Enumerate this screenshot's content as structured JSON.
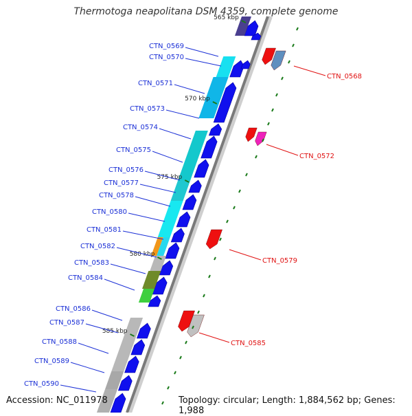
{
  "title": "Thermotoga neapolitana DSM 4359, complete genome",
  "footer": {
    "accession": "Accession: NC_011978",
    "info": "Topology: circular; Length: 1,884,562 bp; Genes: 1,988"
  },
  "colors": {
    "backbone": "#7f7f7f",
    "forward_label": "#1a2fd6",
    "reverse_label": "#e01010",
    "tick": "#1a7a1a"
  },
  "ticks": [
    "565 kbp",
    "570 kbp",
    "575 kbp",
    "580 kbp",
    "585 kbp"
  ],
  "forward_genes": [
    "CTN_0569",
    "CTN_0570",
    "CTN_0571",
    "CTN_0573",
    "CTN_0574",
    "CTN_0575",
    "CTN_0576",
    "CTN_0577",
    "CTN_0578",
    "CTN_0580",
    "CTN_0581",
    "CTN_0582",
    "CTN_0583",
    "CTN_0584",
    "CTN_0586",
    "CTN_0587",
    "CTN_0588",
    "CTN_0589",
    "CTN_0590"
  ],
  "reverse_genes": [
    "CTN_0568",
    "CTN_0572",
    "CTN_0579",
    "CTN_0585"
  ]
}
